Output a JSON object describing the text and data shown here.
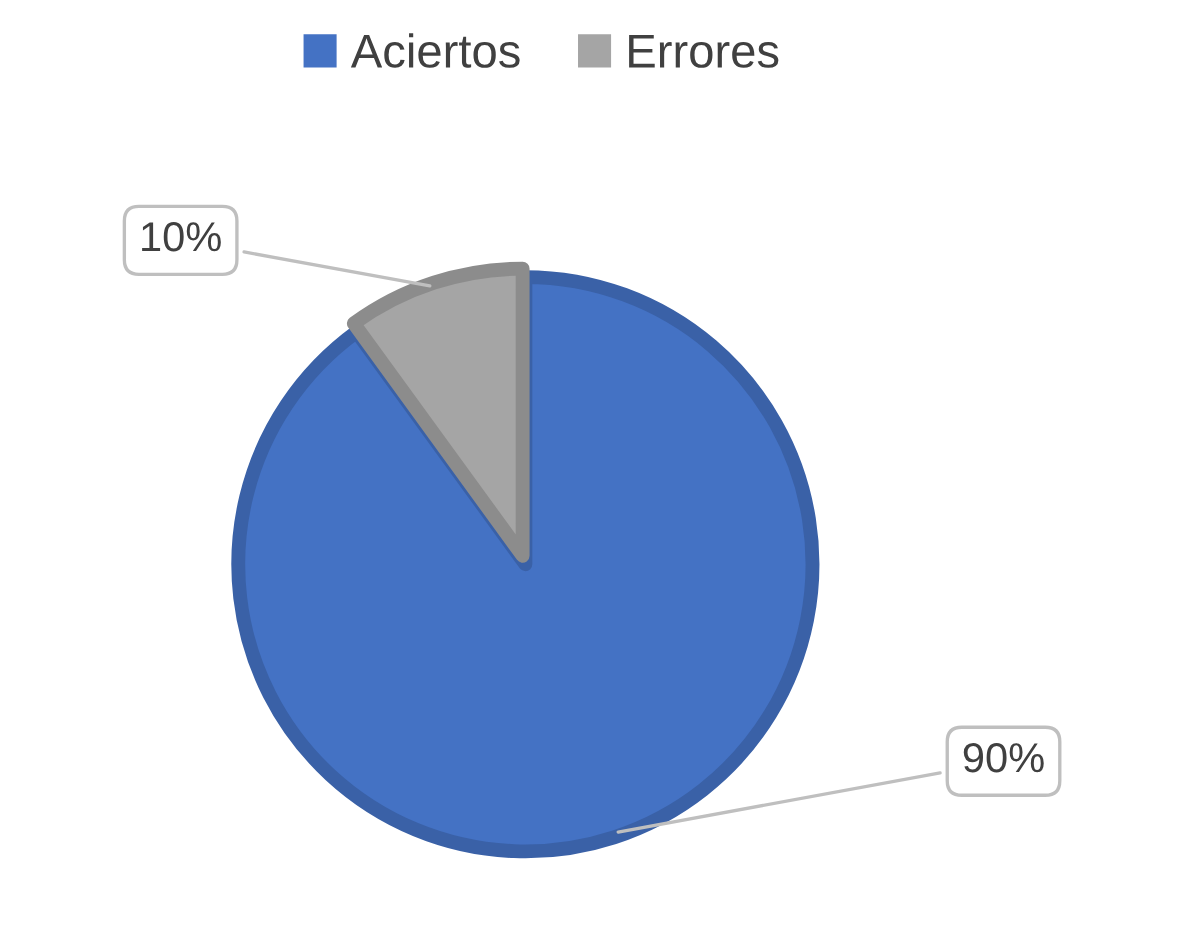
{
  "chart_data": {
    "type": "pie",
    "categories": [
      "Aciertos",
      "Errores"
    ],
    "values": [
      90,
      10
    ],
    "colors": [
      "#4472c4",
      "#a5a5a5"
    ],
    "value_labels": [
      "90%",
      "10%"
    ],
    "legend": "top"
  }
}
